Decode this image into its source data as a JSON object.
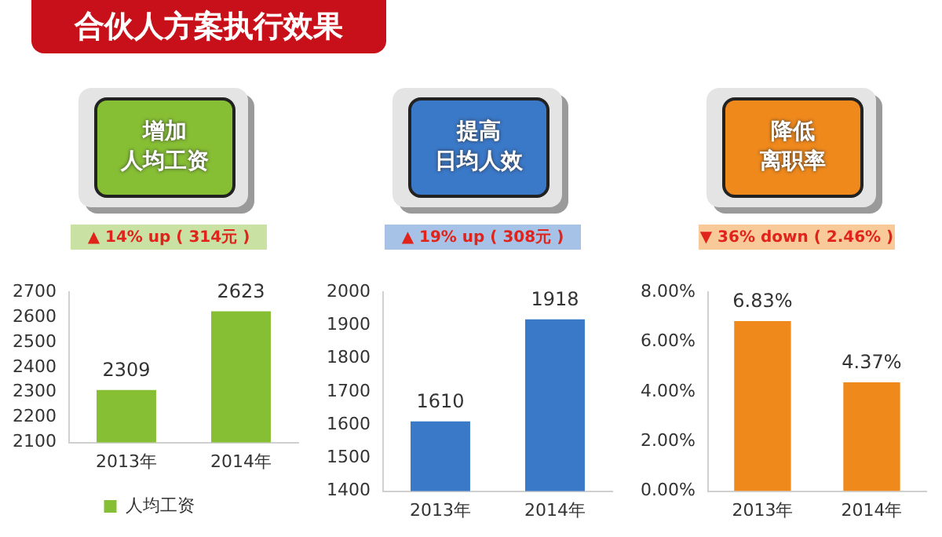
{
  "chart_data": [
    {
      "type": "other",
      "title": "合伙人方案执行效果"
    },
    {
      "type": "bar",
      "title": "增加人均工资",
      "subtitle": "▲ 14% up ( 314元 )",
      "categories": [
        "2013年",
        "2014年"
      ],
      "series": [
        {
          "name": "人均工资",
          "color": "#86bf34",
          "values": [
            2309,
            2623
          ]
        }
      ],
      "ylim": [
        2100,
        2700
      ],
      "yticks": [
        2100,
        2200,
        2300,
        2400,
        2500,
        2600,
        2700
      ],
      "grid": false,
      "legend": "bottom",
      "data_labels": true
    },
    {
      "type": "bar",
      "title": "提高日均人效",
      "subtitle": "▲ 19% up ( 308元 )",
      "categories": [
        "2013年",
        "2014年"
      ],
      "series": [
        {
          "color": "#3a78c8",
          "values": [
            1610,
            1918
          ]
        }
      ],
      "ylim": [
        1400,
        2000
      ],
      "yticks": [
        1400,
        1500,
        1600,
        1700,
        1800,
        1900,
        2000
      ],
      "grid": false,
      "legend": false,
      "data_labels": true
    },
    {
      "type": "bar",
      "title": "降低离职率",
      "subtitle": "▼ 36% down ( 2.46% )",
      "categories": [
        "2013年",
        "2014年"
      ],
      "series": [
        {
          "color": "#f0891c",
          "values": [
            6.83,
            4.37
          ],
          "value_labels": [
            "6.83%",
            "4.37%"
          ]
        }
      ],
      "ylim": [
        0,
        8
      ],
      "yticks": [
        {
          "value": 0,
          "label": "0.00%"
        },
        {
          "value": 2,
          "label": "2.00%"
        },
        {
          "value": 4,
          "label": "4.00%"
        },
        {
          "value": 6,
          "label": "6.00%"
        },
        {
          "value": 8,
          "label": "8.00%"
        }
      ],
      "grid": false,
      "legend": false
    }
  ]
}
